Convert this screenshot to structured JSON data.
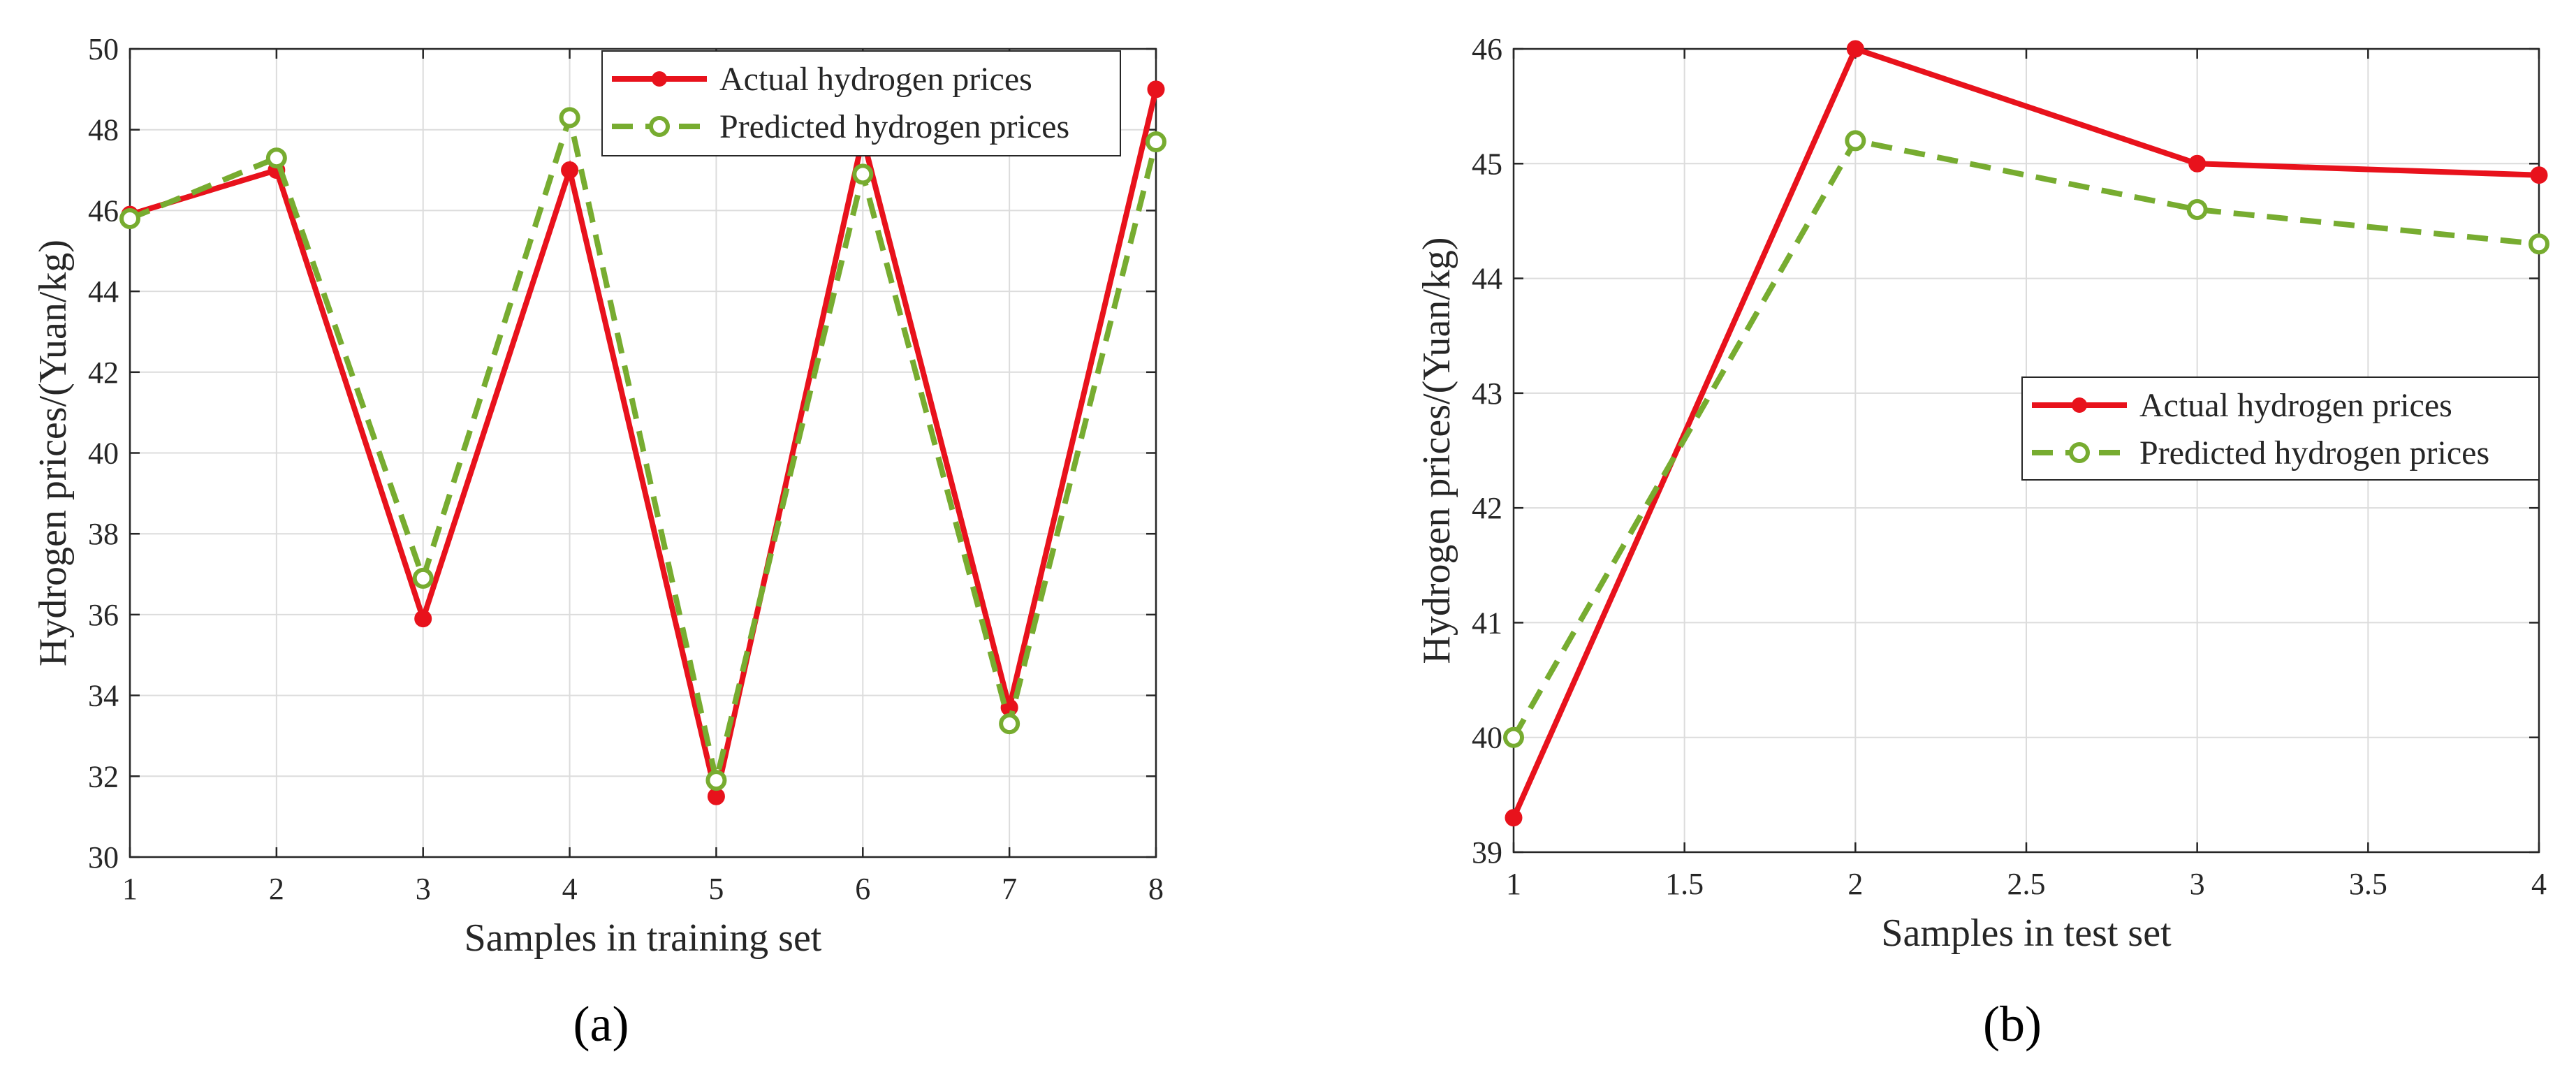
{
  "chart_data": [
    {
      "type": "line",
      "panel_label": "(a)",
      "xlabel": "Samples in training set",
      "ylabel": "Hydrogen prices/(Yuan/kg)",
      "xlim": [
        1,
        8
      ],
      "ylim": [
        30,
        50
      ],
      "xticks": [
        1,
        2,
        3,
        4,
        5,
        6,
        7,
        8
      ],
      "yticks": [
        30,
        32,
        34,
        36,
        38,
        40,
        42,
        44,
        46,
        48,
        50
      ],
      "grid": true,
      "legend_position": "top-right",
      "series": [
        {
          "name": "Actual hydrogen prices",
          "color": "#e8121c",
          "style": "solid",
          "marker": "filled-circle",
          "x": [
            1,
            2,
            3,
            4,
            5,
            6,
            7,
            8
          ],
          "y": [
            45.9,
            47.0,
            35.9,
            47.0,
            31.5,
            47.8,
            33.7,
            49.0
          ]
        },
        {
          "name": "Predicted hydrogen prices",
          "color": "#77ac30",
          "style": "dashed",
          "marker": "open-circle",
          "x": [
            1,
            2,
            3,
            4,
            5,
            6,
            7,
            8
          ],
          "y": [
            45.8,
            47.3,
            36.9,
            48.3,
            31.9,
            46.9,
            33.3,
            47.7
          ]
        }
      ]
    },
    {
      "type": "line",
      "panel_label": "(b)",
      "xlabel": "Samples in test set",
      "ylabel": "Hydrogen prices/(Yuan/kg)",
      "xlim": [
        1,
        4
      ],
      "ylim": [
        39,
        46
      ],
      "xticks": [
        1,
        1.5,
        2,
        2.5,
        3,
        3.5,
        4
      ],
      "yticks": [
        39,
        40,
        41,
        42,
        43,
        44,
        45,
        46
      ],
      "grid": true,
      "legend_position": "center-right",
      "series": [
        {
          "name": "Actual hydrogen prices",
          "color": "#e8121c",
          "style": "solid",
          "marker": "filled-circle",
          "x": [
            1,
            2,
            3,
            4
          ],
          "y": [
            39.3,
            46.0,
            45.0,
            44.9
          ]
        },
        {
          "name": "Predicted hydrogen prices",
          "color": "#77ac30",
          "style": "dashed",
          "marker": "open-circle",
          "x": [
            1,
            2,
            3,
            4
          ],
          "y": [
            40.0,
            45.2,
            44.6,
            44.3
          ]
        }
      ]
    }
  ]
}
